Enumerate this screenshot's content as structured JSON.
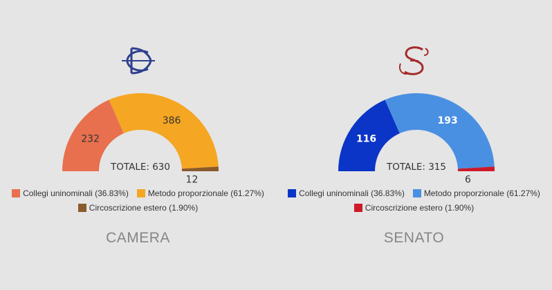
{
  "charts": [
    {
      "name": "CAMERA",
      "logo_color": "#2d3f8e",
      "chart_data": {
        "type": "pie",
        "subtype": "half-donut",
        "categories": [
          "Collegi uninominali",
          "Metodo proporzionale",
          "Circoscrizione estero"
        ],
        "values": [
          232,
          386,
          12
        ],
        "colors": [
          "#e8704f",
          "#f5a623",
          "#8b5a2b"
        ],
        "label_colors": [
          "#333333",
          "#333333",
          "#333333"
        ],
        "legend_labels": [
          "Collegi uninominali (36.83%)",
          "Metodo proporzionale (61.27%)",
          "Circoscrizione estero (1.90%)"
        ],
        "total_label": "TOTALE: 630",
        "legend_position": "bottom"
      }
    },
    {
      "name": "SENATO",
      "logo_color": "#a52a2a",
      "chart_data": {
        "type": "pie",
        "subtype": "half-donut",
        "categories": [
          "Collegi uninominali",
          "Metodo proporzionale",
          "Circoscrizione estero"
        ],
        "values": [
          116,
          193,
          6
        ],
        "colors": [
          "#0b35c7",
          "#4a90e2",
          "#cc1a2b"
        ],
        "label_colors": [
          "#ffffff",
          "#ffffff",
          "#333333"
        ],
        "legend_labels": [
          "Collegi uninominali (36.83%)",
          "Metodo proporzionale (61.27%)",
          "Circoscrizione estero (1.90%)"
        ],
        "total_label": "TOTALE: 315",
        "legend_position": "bottom"
      }
    }
  ]
}
